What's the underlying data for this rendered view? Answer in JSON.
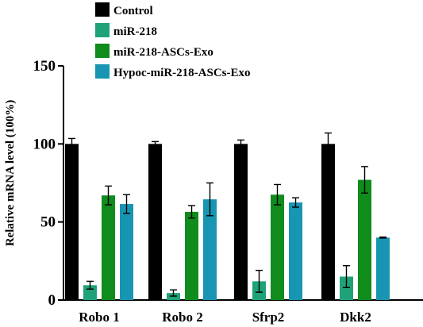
{
  "chart_data": {
    "type": "bar",
    "ylabel": "Relative mRNA level (100%)",
    "xlabel": "",
    "ylim": [
      0,
      150
    ],
    "yticks": [
      0,
      50,
      100,
      150
    ],
    "grid": false,
    "legend_position": "top-center",
    "categories": [
      "Robo 1",
      "Robo 2",
      "Sfrp2",
      "Dkk2"
    ],
    "series": [
      {
        "name": "Control",
        "color": "#000000",
        "values": [
          100,
          100,
          100,
          100
        ],
        "errors": [
          3.5,
          1.5,
          2.5,
          7
        ]
      },
      {
        "name": "miR-218",
        "color": "#1fa27a",
        "values": [
          9.5,
          4.5,
          12,
          15
        ],
        "errors": [
          2.5,
          2,
          7,
          7
        ]
      },
      {
        "name": "miR-218-ASCs-Exo",
        "color": "#0f8c1c",
        "values": [
          67,
          56.5,
          67.5,
          77
        ],
        "errors": [
          6,
          4,
          6.5,
          8.5
        ]
      },
      {
        "name": "Hypoc-miR-218-ASCs-Exo",
        "color": "#1795b3",
        "values": [
          61.5,
          64.5,
          62.5,
          40
        ],
        "errors": [
          6,
          10.5,
          3,
          0.3
        ]
      }
    ]
  }
}
